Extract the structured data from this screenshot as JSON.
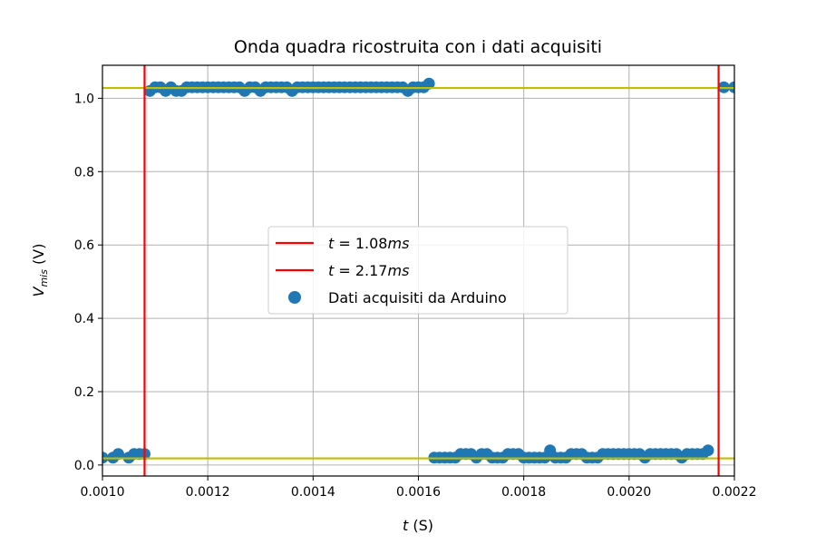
{
  "chart_data": {
    "type": "scatter",
    "title": "Onda quadra ricostruita con i dati acquisiti",
    "xlabel": {
      "var": "t",
      "unit": " (S)"
    },
    "ylabel": {
      "var": "V",
      "sub": "mis",
      "unit": " (V)"
    },
    "xlim": [
      0.001,
      0.0022
    ],
    "ylim": [
      -0.03,
      1.09
    ],
    "xticks": [
      0.001,
      0.0012,
      0.0014,
      0.0016,
      0.0018,
      0.002,
      0.0022
    ],
    "xtick_labels": [
      "0.0010",
      "0.0012",
      "0.0014",
      "0.0016",
      "0.0018",
      "0.0020",
      "0.0022"
    ],
    "yticks": [
      0.0,
      0.2,
      0.4,
      0.6,
      0.8,
      1.0
    ],
    "ytick_labels": [
      "0.0",
      "0.2",
      "0.4",
      "0.6",
      "0.8",
      "1.0"
    ],
    "grid": true,
    "legend_position": "center",
    "vlines": [
      {
        "x": 0.00108,
        "color": "#ff0000",
        "label_var": "t",
        "label_rest": "1.08",
        "label_unit": "ms"
      },
      {
        "x": 0.00217,
        "color": "#ff0000",
        "label_var": "t",
        "label_rest": "2.17",
        "label_unit": "ms"
      }
    ],
    "hlines": [
      {
        "y": 1.028,
        "color": "#bfbf00"
      },
      {
        "y": 0.018,
        "color": "#bfbf00"
      }
    ],
    "series": [
      {
        "name": "Dati acquisiti da Arduino",
        "color": "#1f77b4",
        "points": [
          [
            0.001,
            0.02
          ],
          [
            0.00102,
            0.02
          ],
          [
            0.00103,
            0.03
          ],
          [
            0.00105,
            0.02
          ],
          [
            0.00106,
            0.03
          ],
          [
            0.00107,
            0.03
          ],
          [
            0.00108,
            0.03
          ],
          [
            0.00109,
            1.02
          ],
          [
            0.0011,
            1.03
          ],
          [
            0.00111,
            1.03
          ],
          [
            0.00112,
            1.02
          ],
          [
            0.00113,
            1.03
          ],
          [
            0.00114,
            1.02
          ],
          [
            0.00115,
            1.02
          ],
          [
            0.00116,
            1.03
          ],
          [
            0.00117,
            1.03
          ],
          [
            0.00118,
            1.03
          ],
          [
            0.00119,
            1.03
          ],
          [
            0.0012,
            1.03
          ],
          [
            0.00121,
            1.03
          ],
          [
            0.00122,
            1.03
          ],
          [
            0.00123,
            1.03
          ],
          [
            0.00124,
            1.03
          ],
          [
            0.00125,
            1.03
          ],
          [
            0.00126,
            1.03
          ],
          [
            0.00127,
            1.02
          ],
          [
            0.00128,
            1.03
          ],
          [
            0.00129,
            1.03
          ],
          [
            0.0013,
            1.02
          ],
          [
            0.00131,
            1.03
          ],
          [
            0.00132,
            1.03
          ],
          [
            0.00133,
            1.03
          ],
          [
            0.00134,
            1.03
          ],
          [
            0.00135,
            1.03
          ],
          [
            0.00136,
            1.02
          ],
          [
            0.00137,
            1.03
          ],
          [
            0.00138,
            1.03
          ],
          [
            0.00139,
            1.03
          ],
          [
            0.0014,
            1.03
          ],
          [
            0.00141,
            1.03
          ],
          [
            0.00142,
            1.03
          ],
          [
            0.00143,
            1.03
          ],
          [
            0.00144,
            1.03
          ],
          [
            0.00145,
            1.03
          ],
          [
            0.00146,
            1.03
          ],
          [
            0.00147,
            1.03
          ],
          [
            0.00148,
            1.03
          ],
          [
            0.00149,
            1.03
          ],
          [
            0.0015,
            1.03
          ],
          [
            0.00151,
            1.03
          ],
          [
            0.00152,
            1.03
          ],
          [
            0.00153,
            1.03
          ],
          [
            0.00154,
            1.03
          ],
          [
            0.00155,
            1.03
          ],
          [
            0.00156,
            1.03
          ],
          [
            0.00157,
            1.03
          ],
          [
            0.00158,
            1.02
          ],
          [
            0.00159,
            1.03
          ],
          [
            0.0016,
            1.03
          ],
          [
            0.00161,
            1.03
          ],
          [
            0.00162,
            1.04
          ],
          [
            0.00163,
            0.02
          ],
          [
            0.00164,
            0.02
          ],
          [
            0.00165,
            0.02
          ],
          [
            0.00166,
            0.02
          ],
          [
            0.00167,
            0.02
          ],
          [
            0.00168,
            0.03
          ],
          [
            0.00169,
            0.03
          ],
          [
            0.0017,
            0.03
          ],
          [
            0.00171,
            0.02
          ],
          [
            0.00172,
            0.03
          ],
          [
            0.00173,
            0.03
          ],
          [
            0.00174,
            0.02
          ],
          [
            0.00175,
            0.02
          ],
          [
            0.00176,
            0.02
          ],
          [
            0.00177,
            0.03
          ],
          [
            0.00178,
            0.03
          ],
          [
            0.00179,
            0.03
          ],
          [
            0.0018,
            0.02
          ],
          [
            0.00181,
            0.02
          ],
          [
            0.00182,
            0.02
          ],
          [
            0.00183,
            0.02
          ],
          [
            0.00184,
            0.02
          ],
          [
            0.00185,
            0.04
          ],
          [
            0.00186,
            0.02
          ],
          [
            0.00187,
            0.02
          ],
          [
            0.00188,
            0.02
          ],
          [
            0.00189,
            0.03
          ],
          [
            0.0019,
            0.03
          ],
          [
            0.00191,
            0.03
          ],
          [
            0.00192,
            0.02
          ],
          [
            0.00193,
            0.02
          ],
          [
            0.00194,
            0.02
          ],
          [
            0.00195,
            0.03
          ],
          [
            0.00196,
            0.03
          ],
          [
            0.00197,
            0.03
          ],
          [
            0.00198,
            0.03
          ],
          [
            0.00199,
            0.03
          ],
          [
            0.002,
            0.03
          ],
          [
            0.00201,
            0.03
          ],
          [
            0.00202,
            0.03
          ],
          [
            0.00203,
            0.02
          ],
          [
            0.00204,
            0.03
          ],
          [
            0.00205,
            0.03
          ],
          [
            0.00206,
            0.03
          ],
          [
            0.00207,
            0.03
          ],
          [
            0.00208,
            0.03
          ],
          [
            0.00209,
            0.03
          ],
          [
            0.0021,
            0.02
          ],
          [
            0.00211,
            0.03
          ],
          [
            0.00212,
            0.03
          ],
          [
            0.00213,
            0.03
          ],
          [
            0.00214,
            0.03
          ],
          [
            0.00215,
            0.04
          ],
          [
            0.00218,
            1.03
          ],
          [
            0.0022,
            1.03
          ]
        ]
      }
    ]
  }
}
